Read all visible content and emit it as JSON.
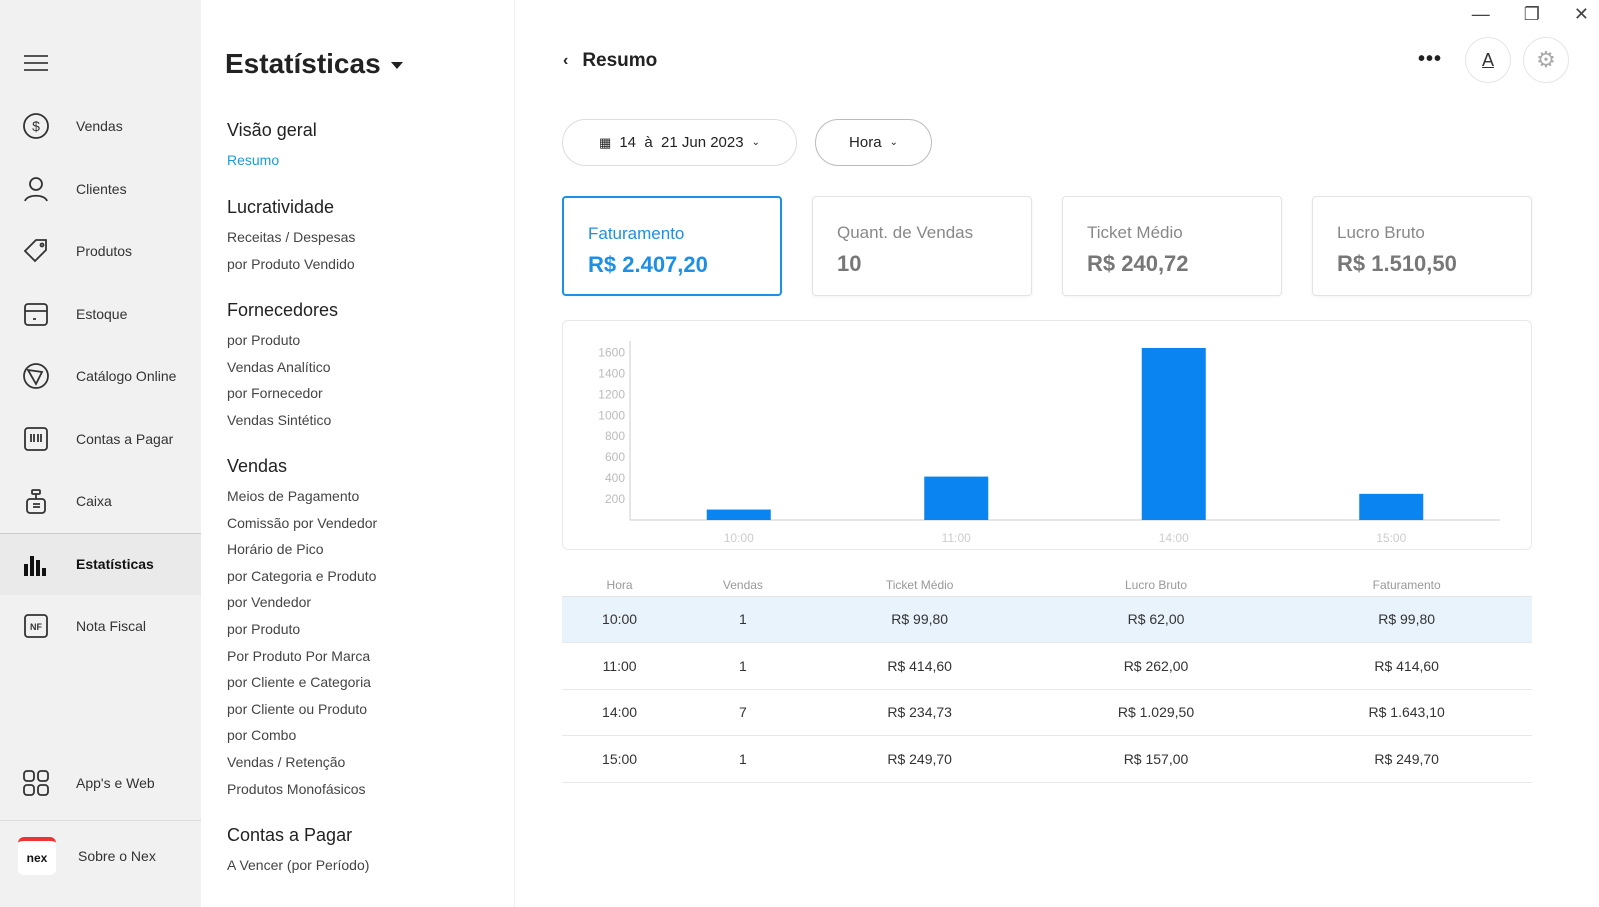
{
  "window": {
    "minimize": "—",
    "restore": "❐",
    "close": "✕"
  },
  "sidebar": {
    "items": [
      {
        "label": "Vendas",
        "icon": "dollar-icon"
      },
      {
        "label": "Clientes",
        "icon": "user-icon"
      },
      {
        "label": "Produtos",
        "icon": "tag-icon"
      },
      {
        "label": "Estoque",
        "icon": "box-icon"
      },
      {
        "label": "Catálogo Online",
        "icon": "catalog-icon"
      },
      {
        "label": "Contas a Pagar",
        "icon": "barcode-icon"
      },
      {
        "label": "Caixa",
        "icon": "register-icon"
      },
      {
        "label": "Estatísticas",
        "icon": "bar-chart-icon"
      },
      {
        "label": "Nota Fiscal",
        "icon": "nf-icon",
        "badge": "NF"
      }
    ],
    "apps": "App's e Web",
    "about": "Sobre o Nex",
    "logo": "nex"
  },
  "menu": {
    "title": "Estatísticas",
    "sections": [
      {
        "title": "Visão geral",
        "items": [
          "Resumo"
        ]
      },
      {
        "title": "Lucratividade",
        "items": [
          "Receitas / Despesas",
          "por Produto Vendido"
        ]
      },
      {
        "title": "Fornecedores",
        "items": [
          "por Produto",
          "Vendas Analítico",
          "por Fornecedor",
          "Vendas Sintético"
        ]
      },
      {
        "title": "Vendas",
        "items": [
          "Meios de Pagamento",
          "Comissão por Vendedor",
          "Horário de Pico",
          "por Categoria e Produto",
          "por Vendedor",
          "por Produto",
          "Por Produto Por Marca",
          "por Cliente e Categoria",
          "por Cliente ou Produto",
          "por Combo",
          "Vendas / Retenção",
          "Produtos Monofásicos"
        ]
      },
      {
        "title": "Contas a Pagar",
        "items": [
          "A Vencer (por Período)"
        ]
      }
    ]
  },
  "header": {
    "title": "Resumo",
    "more": "•••",
    "font_btn": "A"
  },
  "filters": {
    "date": "14  à  21 Jun 2023",
    "group": "Hora"
  },
  "cards": [
    {
      "label": "Faturamento",
      "value": "R$ 2.407,20"
    },
    {
      "label": "Quant. de Vendas",
      "value": "10"
    },
    {
      "label": "Ticket Médio",
      "value": "R$ 240,72"
    },
    {
      "label": "Lucro Bruto",
      "value": "R$ 1.510,50"
    }
  ],
  "chart_data": {
    "type": "bar",
    "categories": [
      "10:00",
      "11:00",
      "14:00",
      "15:00"
    ],
    "values": [
      99.8,
      414.6,
      1643.1,
      249.7
    ],
    "yticks": [
      200,
      400,
      600,
      800,
      1000,
      1200,
      1400,
      1600
    ],
    "ylim": [
      0,
      1700
    ],
    "color": "#0a84f0",
    "title": "",
    "xlabel": "",
    "ylabel": ""
  },
  "table": {
    "headers": [
      "Hora",
      "Vendas",
      "Ticket Médio",
      "Lucro Bruto",
      "Faturamento"
    ],
    "rows": [
      [
        "10:00",
        "1",
        "R$ 99,80",
        "R$ 62,00",
        "R$ 99,80"
      ],
      [
        "11:00",
        "1",
        "R$ 414,60",
        "R$ 262,00",
        "R$ 414,60"
      ],
      [
        "14:00",
        "7",
        "R$ 234,73",
        "R$ 1.029,50",
        "R$ 1.643,10"
      ],
      [
        "15:00",
        "1",
        "R$ 249,70",
        "R$ 157,00",
        "R$ 249,70"
      ]
    ]
  }
}
